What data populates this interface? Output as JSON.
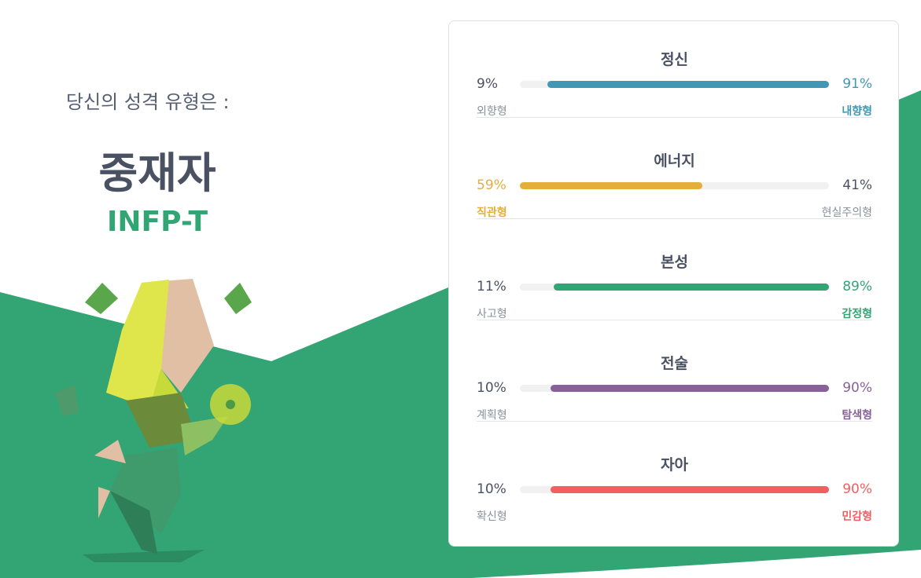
{
  "header": {
    "subtitle": "당신의 성격 유형은 :",
    "type_name": "중재자",
    "code": "INFP-T"
  },
  "traits": [
    {
      "title": "정신",
      "color": "#4298b4",
      "dominant": "right",
      "left": {
        "value": 9,
        "label": "9%",
        "name": "외향형"
      },
      "right": {
        "value": 91,
        "label": "91%",
        "name": "내향형"
      }
    },
    {
      "title": "에너지",
      "color": "#e4ae3a",
      "dominant": "left",
      "left": {
        "value": 59,
        "label": "59%",
        "name": "직관형"
      },
      "right": {
        "value": 41,
        "label": "41%",
        "name": "현실주의형"
      }
    },
    {
      "title": "본성",
      "color": "#33a474",
      "dominant": "right",
      "left": {
        "value": 11,
        "label": "11%",
        "name": "사고형"
      },
      "right": {
        "value": 89,
        "label": "89%",
        "name": "감정형"
      }
    },
    {
      "title": "전술",
      "color": "#88619a",
      "dominant": "right",
      "left": {
        "value": 10,
        "label": "10%",
        "name": "계획형"
      },
      "right": {
        "value": 90,
        "label": "90%",
        "name": "탐색형"
      }
    },
    {
      "title": "자아",
      "color": "#f25e62",
      "dominant": "right",
      "left": {
        "value": 10,
        "label": "10%",
        "name": "확신형"
      },
      "right": {
        "value": 90,
        "label": "90%",
        "name": "민감형"
      }
    }
  ]
}
